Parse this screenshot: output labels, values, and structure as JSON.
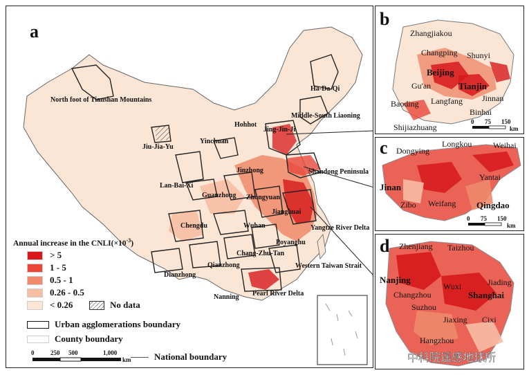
{
  "panels": {
    "a": "a",
    "b": "b",
    "c": "c",
    "d": "d"
  },
  "colors": {
    "gt5": "#d7191c",
    "c1_5": "#e8473a",
    "c05_1": "#ef8a6a",
    "c026_05": "#f6bea3",
    "lt026": "#fbe6d6",
    "border": "#222222"
  },
  "legend": {
    "title": "Annual increase in the CNLI(×10",
    "title_sup": "-3",
    "title_end": ")",
    "classes": [
      "> 5",
      "1 - 5",
      "0.5 - 1",
      "0.26 - 0.5",
      "< 0.26"
    ],
    "no_data": "No data",
    "urban_boundary": "Urban agglomerations boundary",
    "county_boundary": "County boundary",
    "national_boundary": "National boundary"
  },
  "scale_main": {
    "ticks": [
      "0",
      "250",
      "500",
      "1,000"
    ],
    "unit": "km"
  },
  "scale_b": {
    "ticks": [
      "0",
      "75",
      "150"
    ],
    "unit": "km"
  },
  "scale_c": {
    "ticks": [
      "0",
      "75",
      "150"
    ],
    "unit": "km"
  },
  "agglomerations": [
    "North foot of Tianshan Mountains",
    "Ha-Da-Qi",
    "Middle-South Liaoning",
    "Hohhot",
    "Jing-Jin-Ji",
    "Jiu-Jia-Yu",
    "Yinchuan",
    "Jinzhong",
    "Shandong Peninsula",
    "Lan-Bai-Xi",
    "Guanzhong",
    "Zhongyuan",
    "Jianghuai",
    "Chengdu",
    "Wuhan",
    "Yangtze River Delta",
    "Poyanghu",
    "Chang-Zhu-Tan",
    "Qianzhong",
    "Western Taiwan Strait",
    "Dianzhong",
    "Nanning",
    "Pearl River Delta"
  ],
  "cities_b": [
    "Zhangjiakou",
    "Changping",
    "Shunyi",
    "Beijing",
    "Gu'an",
    "Tianjin",
    "Jinnan",
    "Langfang",
    "Baoding",
    "Binhai",
    "Shijiazhuang"
  ],
  "cities_c": [
    "Dongying",
    "Longkou",
    "Weihai",
    "Yantai",
    "Jinan",
    "Zibo",
    "Weifang",
    "Qingdao"
  ],
  "cities_d": [
    "Zhenjiang",
    "Taizhou",
    "Nanjing",
    "Wuxi",
    "Jiading",
    "Changzhou",
    "Shanghai",
    "Suzhou",
    "Jiaxing",
    "Hangzhou",
    "Cixi"
  ],
  "watermark": "中科院遥感地球所"
}
